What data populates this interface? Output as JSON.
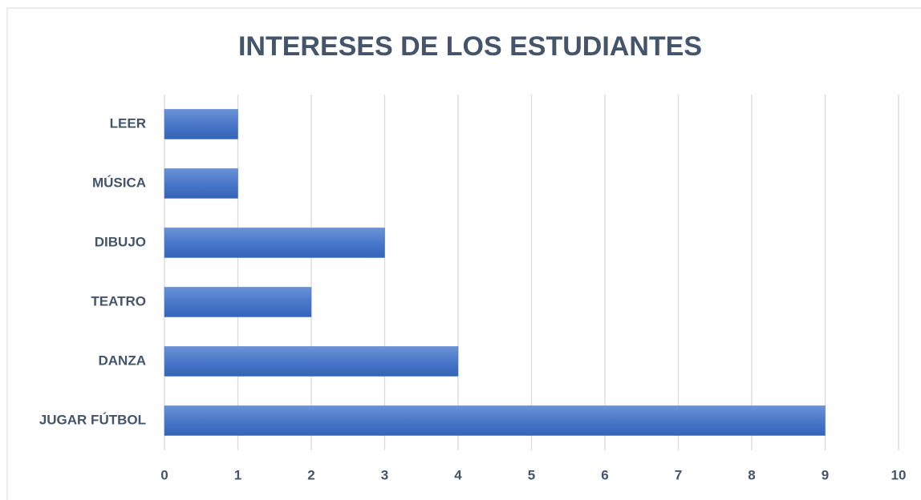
{
  "chart_data": {
    "type": "bar",
    "orientation": "horizontal",
    "title": "INTERESES DE LOS ESTUDIANTES",
    "categories": [
      "LEER",
      "MÚSICA",
      "DIBUJO",
      "TEATRO",
      "DANZA",
      "JUGAR FÚTBOL"
    ],
    "values": [
      1,
      1,
      3,
      2,
      4,
      9
    ],
    "color": "#4472c4",
    "xlim": [
      0,
      10
    ],
    "xticks": [
      0,
      1,
      2,
      3,
      4,
      5,
      6,
      7,
      8,
      9,
      10
    ],
    "grid": true
  }
}
